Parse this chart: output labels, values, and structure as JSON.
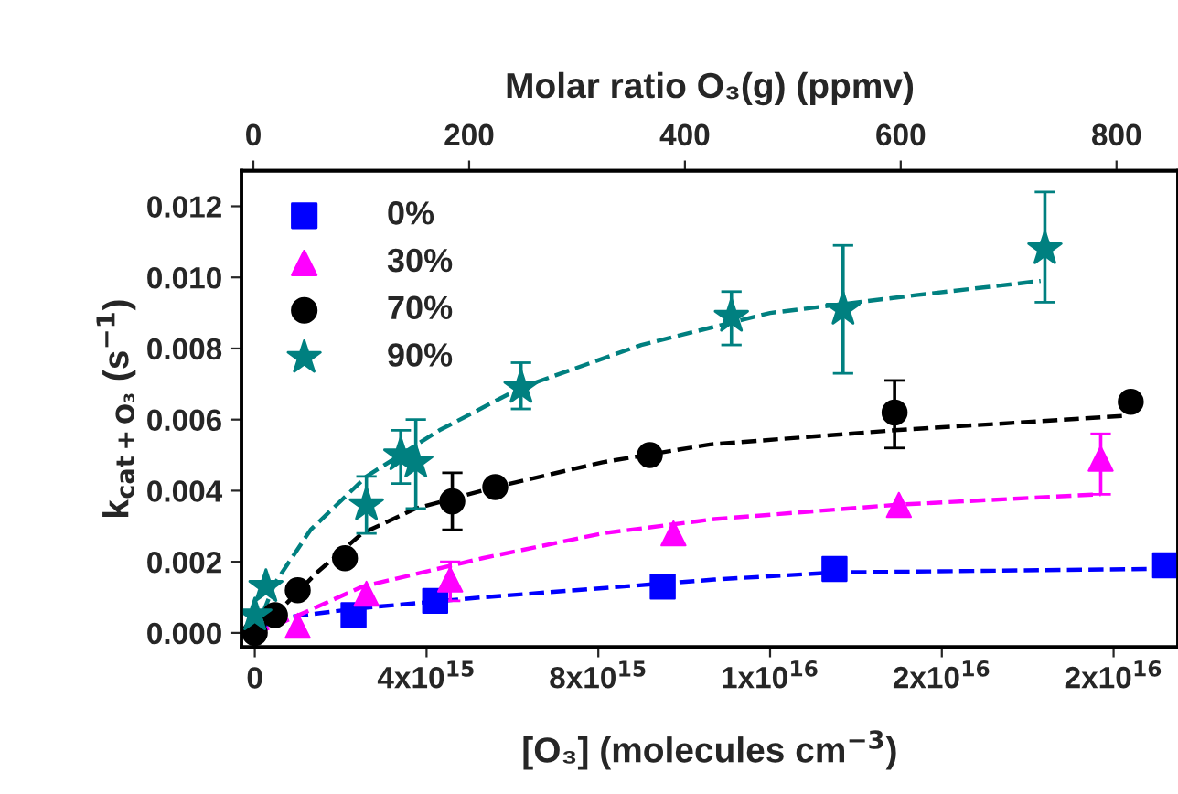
{
  "chart_data": {
    "type": "scatter",
    "xlabel": "[O₃] (molecules cm$^{−3}$)",
    "ylabel": "k$_{cat+O₃}$ (s$^{−1}$)",
    "x2label": "Molar ratio O₃(g) (ppmv)",
    "xlim": [
      -310000000000000.0,
      2.15e+16
    ],
    "xticks": [
      0,
      {
        "value": 4000000000000000.0,
        "label": "4x10$^{15}$"
      },
      {
        "value": 8000000000000000.0,
        "label": "8x10$^{15}$"
      },
      {
        "value": 1.2e+16,
        "label": "1x10$^{16}$"
      },
      {
        "value": 1.6e+16,
        "label": "2x10$^{16}$"
      },
      {
        "value": 2e+16,
        "label": "2x10$^{16}$"
      }
    ],
    "x2lim": [
      -11,
      857
    ],
    "x2ticks": [
      0,
      200,
      400,
      600,
      800
    ],
    "ylim": [
      -0.0004,
      0.013
    ],
    "yticks": [
      {
        "value": 0,
        "label": "0.000"
      },
      {
        "value": 0.002,
        "label": "0.002"
      },
      {
        "value": 0.004,
        "label": "0.004"
      },
      {
        "value": 0.006,
        "label": "0.006"
      },
      {
        "value": 0.008,
        "label": "0.008"
      },
      {
        "value": 0.01,
        "label": "0.010"
      },
      {
        "value": 0.012,
        "label": "0.012"
      }
    ],
    "grid": false,
    "legend": "top left",
    "series": [
      {
        "name": "0%",
        "color": "#0000ff",
        "marker": "square",
        "x": [
          2300000000000000.0,
          4200000000000000.0,
          9500000000000000.0,
          1.35e+16,
          2.12e+16
        ],
        "values": [
          0.0005,
          0.0009,
          0.0013,
          0.0018,
          0.0019
        ]
      },
      {
        "name": "30%",
        "color": "#ff00ff",
        "marker": "triangle",
        "x": [
          1000000000000000.0,
          2600000000000000.0,
          4550000000000000.0,
          9750000000000000.0,
          1.5e+16,
          1.97e+16
        ],
        "values": [
          0.0002,
          0.0011,
          0.0015,
          0.0028,
          0.0036,
          0.0049
        ],
        "errors": [
          null,
          null,
          [
            0.0009,
            0.002
          ],
          null,
          null,
          [
            0.0039,
            0.0056
          ]
        ]
      },
      {
        "name": "70%",
        "color": "#000000",
        "marker": "circle",
        "x": [
          0,
          470000000000000.0,
          1000000000000000.0,
          2100000000000000.0,
          4600000000000000.0,
          5600000000000000.0,
          9200000000000000.0,
          1.49e+16,
          2.04e+16
        ],
        "values": [
          0.0,
          0.0005,
          0.0012,
          0.0021,
          0.0037,
          0.0041,
          0.005,
          0.0062,
          0.0065
        ],
        "errors": [
          null,
          null,
          null,
          null,
          [
            0.0029,
            0.0045
          ],
          null,
          null,
          [
            0.0052,
            0.0071
          ],
          null
        ]
      },
      {
        "name": "90%",
        "color": "#008080",
        "marker": "star",
        "x": [
          0,
          260000000000000.0,
          2600000000000000.0,
          3400000000000000.0,
          3750000000000000.0,
          6200000000000000.0,
          1.11e+16,
          1.37e+16,
          1.84e+16
        ],
        "values": [
          0.0005,
          0.0013,
          0.0036,
          0.005,
          0.0048,
          0.0069,
          0.0089,
          0.0091,
          0.0108
        ],
        "errors": [
          null,
          null,
          [
            0.0028,
            0.0044
          ],
          [
            0.0042,
            0.0057
          ],
          [
            0.0035,
            0.006
          ],
          [
            0.0063,
            0.0076
          ],
          [
            0.0081,
            0.0096
          ],
          [
            0.0073,
            0.0109
          ],
          [
            0.0093,
            0.0124
          ]
        ]
      },
      {
        "type": "line",
        "line_style": "dashed",
        "marker": "none",
        "color": "#0000ff",
        "x": [
          0,
          470000000000000.0,
          2500000000000000.0,
          5300000000000000.0,
          1.07e+16,
          1.35e+16,
          2.1e+16
        ],
        "values": [
          0.0,
          0.0004,
          0.0007,
          0.001,
          0.0015,
          0.0017,
          0.0018
        ]
      },
      {
        "type": "line",
        "line_style": "dashed",
        "marker": "none",
        "color": "#ff00ff",
        "x": [
          0,
          470000000000000.0,
          2500000000000000.0,
          5300000000000000.0,
          8100000000000000.0,
          1.07e+16,
          1.49e+16,
          1.97e+16
        ],
        "values": [
          0.0,
          0.0002,
          0.0013,
          0.0021,
          0.0028,
          0.0032,
          0.0036,
          0.0039
        ]
      },
      {
        "type": "line",
        "line_style": "dashed",
        "marker": "none",
        "color": "#000000",
        "x": [
          0,
          470000000000000.0,
          1450000000000000.0,
          2500000000000000.0,
          3750000000000000.0,
          5600000000000000.0,
          8100000000000000.0,
          1.06e+16,
          1.49e+16,
          2.02e+16
        ],
        "values": [
          0.0,
          0.0005,
          0.0017,
          0.0028,
          0.0035,
          0.0041,
          0.0048,
          0.0053,
          0.0057,
          0.0061
        ]
      },
      {
        "type": "line",
        "line_style": "dashed",
        "marker": "none",
        "color": "#008080",
        "x": [
          0,
          470000000000000.0,
          1300000000000000.0,
          2600000000000000.0,
          4300000000000000.0,
          6200000000000000.0,
          9000000000000000.0,
          1.2e+16,
          1.54e+16,
          1.83e+16
        ],
        "values": [
          0.0,
          0.0014,
          0.0029,
          0.0044,
          0.0057,
          0.0069,
          0.0081,
          0.009,
          0.0095,
          0.0099
        ]
      }
    ]
  }
}
